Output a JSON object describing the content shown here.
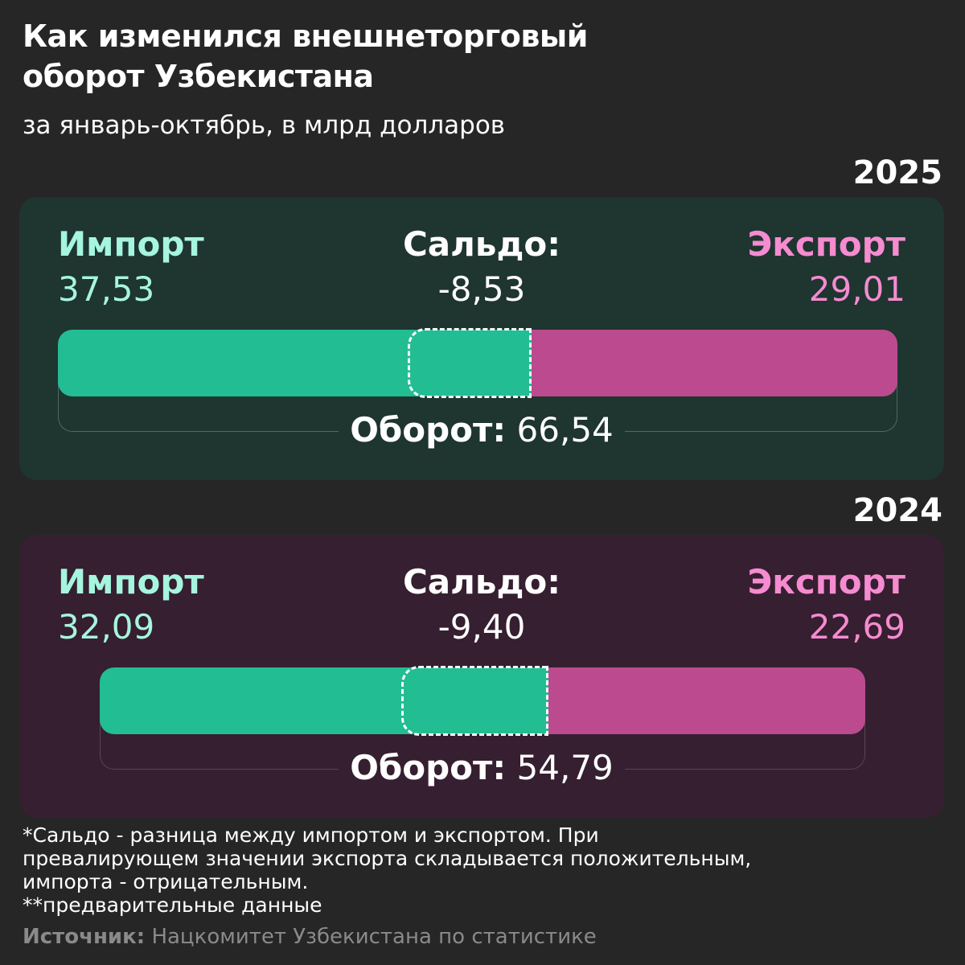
{
  "title_line1": "Как изменился внешнеторговый",
  "title_line2": "оборот Узбекистана",
  "subtitle": "за январь-октябрь, в млрд долларов",
  "labels": {
    "import": "Импорт",
    "saldo": "Сальдо:",
    "export": "Экспорт",
    "turnover": "Оборот:"
  },
  "colors": {
    "import_bar": "#22bd93",
    "export_bar": "#bb4b8e",
    "import_text": "#a6f5de",
    "export_text": "#f58bd0",
    "panel_2025": "#1f3530",
    "panel_2024": "#361f30"
  },
  "chart_data": [
    {
      "type": "bar",
      "stacked": true,
      "year": "2025",
      "import": 37.53,
      "export": 29.01,
      "saldo": -8.53,
      "turnover": 66.54,
      "import_text": "37,53",
      "export_text": "29,01",
      "saldo_text": "-8,53",
      "turnover_text": "66,54"
    },
    {
      "type": "bar",
      "stacked": true,
      "year": "2024",
      "import": 32.09,
      "export": 22.69,
      "saldo": -9.4,
      "turnover": 54.79,
      "import_text": "32,09",
      "export_text": "22,69",
      "saldo_text": "-9,40",
      "turnover_text": "54,79"
    }
  ],
  "footnote_line1": "*Сальдо - разница между импортом и экспортом. При",
  "footnote_line2": "превалирующем значении экспорта складывается положительным,",
  "footnote_line3": "импорта - отрицательным.",
  "footnote_line4": "**предварительные данные",
  "source_label": "Источник:",
  "source_text": "Нацкомитет Узбекистана по статистике"
}
